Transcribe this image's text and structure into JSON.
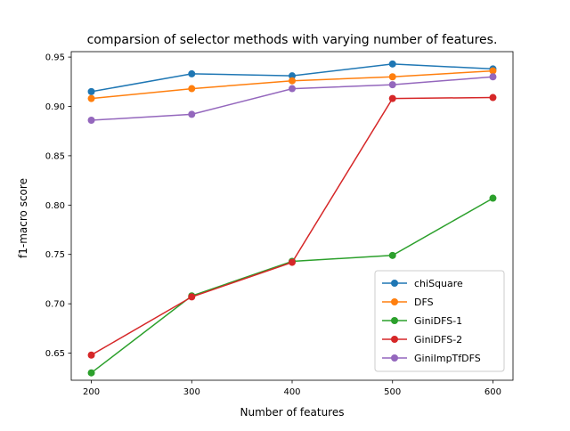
{
  "chart_data": {
    "type": "line",
    "title": "comparsion of selector methods with varying number of features.",
    "xlabel": "Number of features",
    "ylabel": "f1-macro score",
    "x": [
      200,
      300,
      400,
      500,
      600
    ],
    "xlim": [
      180,
      620
    ],
    "ylim": [
      0.6225,
      0.9555
    ],
    "xticks": [
      200,
      300,
      400,
      500,
      600
    ],
    "yticks": [
      0.65,
      0.7,
      0.75,
      0.8,
      0.85,
      0.9,
      0.95
    ],
    "ytick_labels": [
      "0.65",
      "0.70",
      "0.75",
      "0.80",
      "0.85",
      "0.90",
      "0.95"
    ],
    "grid": false,
    "legend_position": "lower-right",
    "series": [
      {
        "name": "chiSquare",
        "color": "#1f77b4",
        "values": [
          0.915,
          0.933,
          0.931,
          0.943,
          0.938
        ]
      },
      {
        "name": "DFS",
        "color": "#ff7f0e",
        "values": [
          0.908,
          0.918,
          0.926,
          0.93,
          0.936
        ]
      },
      {
        "name": "GiniDFS-1",
        "color": "#2ca02c",
        "values": [
          0.63,
          0.708,
          0.743,
          0.749,
          0.807
        ]
      },
      {
        "name": "GiniDFS-2",
        "color": "#d62728",
        "values": [
          0.648,
          0.707,
          0.742,
          0.908,
          0.909
        ]
      },
      {
        "name": "GiniImpTfDFS",
        "color": "#9467bd",
        "values": [
          0.886,
          0.892,
          0.918,
          0.922,
          0.93
        ]
      }
    ]
  }
}
